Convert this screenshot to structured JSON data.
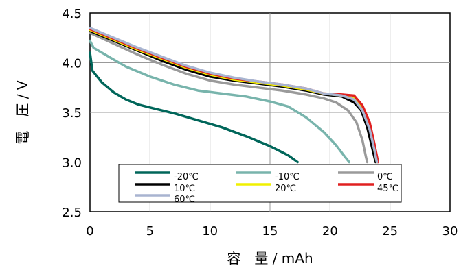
{
  "chart_data": {
    "type": "line",
    "title": "",
    "xlabel": "容　量 / mAh",
    "ylabel": "電　圧 / V",
    "xlim": [
      0,
      30
    ],
    "ylim": [
      2.5,
      4.5
    ],
    "xticks": [
      "0",
      "5",
      "10",
      "15",
      "20",
      "25",
      "30"
    ],
    "yticks": [
      "2.5",
      "3.0",
      "3.5",
      "4.0",
      "4.5"
    ],
    "grid": true,
    "legend_placement": "bottom",
    "series": [
      {
        "name": "-20℃",
        "color": "#00665a",
        "points": [
          [
            0,
            4.1
          ],
          [
            0.2,
            3.92
          ],
          [
            1,
            3.8
          ],
          [
            2,
            3.7
          ],
          [
            3,
            3.63
          ],
          [
            4,
            3.58
          ],
          [
            5,
            3.55
          ],
          [
            7,
            3.49
          ],
          [
            9,
            3.42
          ],
          [
            11,
            3.35
          ],
          [
            13,
            3.26
          ],
          [
            15,
            3.16
          ],
          [
            16.5,
            3.07
          ],
          [
            17.3,
            3.0
          ]
        ]
      },
      {
        "name": "-10℃",
        "color": "#78b4ac",
        "points": [
          [
            0,
            4.22
          ],
          [
            0.3,
            4.15
          ],
          [
            1,
            4.1
          ],
          [
            2,
            4.03
          ],
          [
            3,
            3.96
          ],
          [
            4,
            3.91
          ],
          [
            5,
            3.86
          ],
          [
            7,
            3.78
          ],
          [
            9,
            3.72
          ],
          [
            11,
            3.69
          ],
          [
            13,
            3.66
          ],
          [
            15,
            3.61
          ],
          [
            16.5,
            3.56
          ],
          [
            18,
            3.45
          ],
          [
            19.5,
            3.3
          ],
          [
            20.5,
            3.17
          ],
          [
            21.2,
            3.06
          ],
          [
            21.6,
            3.0
          ]
        ]
      },
      {
        "name": "0℃",
        "color": "#9a9a9a",
        "points": [
          [
            0,
            4.3
          ],
          [
            2,
            4.19
          ],
          [
            4,
            4.08
          ],
          [
            6,
            3.98
          ],
          [
            8,
            3.89
          ],
          [
            10,
            3.82
          ],
          [
            12,
            3.78
          ],
          [
            14,
            3.75
          ],
          [
            16,
            3.72
          ],
          [
            18,
            3.68
          ],
          [
            19.5,
            3.64
          ],
          [
            20.5,
            3.6
          ],
          [
            21.5,
            3.52
          ],
          [
            22.2,
            3.4
          ],
          [
            22.7,
            3.22
          ],
          [
            23,
            3.05
          ],
          [
            23.1,
            3.0
          ]
        ]
      },
      {
        "name": "10℃",
        "color": "#000000",
        "points": [
          [
            0,
            4.32
          ],
          [
            2,
            4.22
          ],
          [
            4,
            4.12
          ],
          [
            6,
            4.02
          ],
          [
            8,
            3.93
          ],
          [
            10,
            3.86
          ],
          [
            12,
            3.82
          ],
          [
            14,
            3.79
          ],
          [
            16,
            3.76
          ],
          [
            18,
            3.72
          ],
          [
            19.5,
            3.68
          ],
          [
            21,
            3.66
          ],
          [
            22,
            3.6
          ],
          [
            22.6,
            3.52
          ],
          [
            23.1,
            3.35
          ],
          [
            23.5,
            3.15
          ],
          [
            23.8,
            3.0
          ]
        ]
      },
      {
        "name": "20℃",
        "color": "#f0f000",
        "points": [
          [
            0,
            4.33
          ],
          [
            2,
            4.23
          ],
          [
            4,
            4.13
          ],
          [
            6,
            4.04
          ],
          [
            8,
            3.95
          ],
          [
            10,
            3.88
          ],
          [
            12,
            3.83
          ],
          [
            14,
            3.8
          ],
          [
            16,
            3.77
          ],
          [
            18,
            3.73
          ],
          [
            19.5,
            3.69
          ],
          [
            21,
            3.67
          ],
          [
            22,
            3.64
          ],
          [
            22.6,
            3.56
          ],
          [
            23.2,
            3.4
          ],
          [
            23.6,
            3.18
          ],
          [
            23.9,
            3.0
          ]
        ]
      },
      {
        "name": "45℃",
        "color": "#e02020",
        "points": [
          [
            0,
            4.34
          ],
          [
            2,
            4.24
          ],
          [
            4,
            4.14
          ],
          [
            6,
            4.05
          ],
          [
            8,
            3.96
          ],
          [
            10,
            3.89
          ],
          [
            12,
            3.84
          ],
          [
            14,
            3.81
          ],
          [
            16,
            3.78
          ],
          [
            18,
            3.74
          ],
          [
            19.5,
            3.69
          ],
          [
            21,
            3.68
          ],
          [
            22,
            3.67
          ],
          [
            22.7,
            3.57
          ],
          [
            23.3,
            3.4
          ],
          [
            23.7,
            3.18
          ],
          [
            24,
            3.0
          ]
        ]
      },
      {
        "name": "60℃",
        "color": "#a8b4d0",
        "points": [
          [
            0,
            4.35
          ],
          [
            2,
            4.25
          ],
          [
            4,
            4.15
          ],
          [
            6,
            4.06
          ],
          [
            8,
            3.97
          ],
          [
            10,
            3.9
          ],
          [
            12,
            3.85
          ],
          [
            14,
            3.81
          ],
          [
            16,
            3.78
          ],
          [
            18,
            3.74
          ],
          [
            19.5,
            3.69
          ],
          [
            21,
            3.67
          ],
          [
            22,
            3.63
          ],
          [
            22.7,
            3.52
          ],
          [
            23.3,
            3.33
          ],
          [
            23.7,
            3.12
          ],
          [
            23.9,
            3.0
          ]
        ]
      }
    ]
  }
}
